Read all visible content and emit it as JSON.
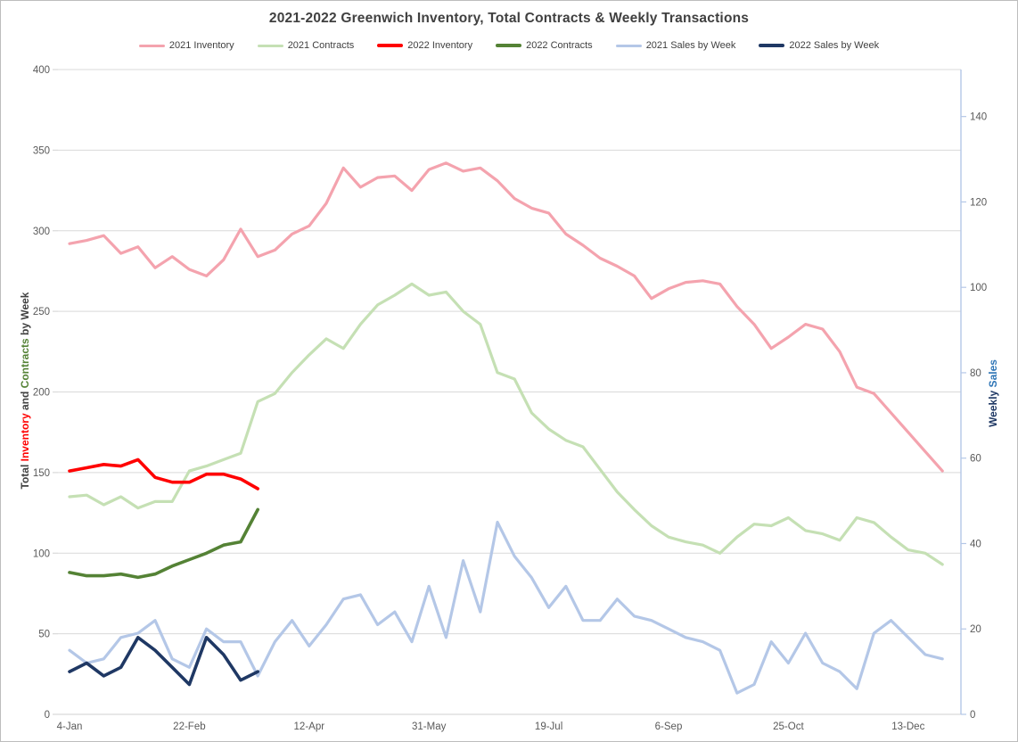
{
  "chart_data": {
    "type": "line",
    "title": "2021-2022 Greenwich Inventory, Total Contracts & Weekly Transactions",
    "legend_position": "top",
    "grid": true,
    "x_axis": {
      "tick_labels": [
        "4-Jan",
        "22-Feb",
        "12-Apr",
        "31-May",
        "19-Jul",
        "6-Sep",
        "25-Oct",
        "13-Dec"
      ],
      "tick_weeks": [
        1,
        8,
        15,
        22,
        29,
        36,
        43,
        50
      ],
      "total_weeks": 52
    },
    "y_left_axis": {
      "min": 0,
      "max": 400,
      "step": 50,
      "ticks": [
        400,
        350,
        300,
        250,
        200,
        150,
        100,
        50,
        0
      ],
      "title_parts": [
        {
          "text": "Total ",
          "color": "#404040"
        },
        {
          "text": "Inventory",
          "color": "#ff0000"
        },
        {
          "text": " and ",
          "color": "#404040"
        },
        {
          "text": "Contracts",
          "color": "#548235"
        },
        {
          "text": " by Week",
          "color": "#404040"
        }
      ]
    },
    "y_right_axis": {
      "min": 0,
      "max": 151,
      "step": 20,
      "ticks": [
        140,
        120,
        100,
        80,
        60,
        40,
        20,
        0
      ],
      "title_parts": [
        {
          "text": "Weekly ",
          "color": "#1f3864"
        },
        {
          "text": "Sales",
          "color": "#2e75b6"
        }
      ]
    },
    "series": [
      {
        "name": "2021 Inventory",
        "color": "#f4a3ae",
        "axis": "left",
        "stroke_width": 3.2,
        "values": [
          292,
          294,
          297,
          286,
          290,
          277,
          284,
          276,
          272,
          282,
          301,
          284,
          288,
          298,
          303,
          317,
          339,
          327,
          333,
          334,
          325,
          338,
          342,
          337,
          339,
          331,
          320,
          314,
          311,
          298,
          291,
          283,
          278,
          272,
          258,
          264,
          268,
          269,
          267,
          253,
          242,
          227,
          234,
          242,
          239,
          225,
          203,
          199,
          187,
          175,
          163,
          151
        ]
      },
      {
        "name": "2021 Contracts",
        "color": "#c5e0b4",
        "axis": "left",
        "stroke_width": 3.2,
        "values": [
          135,
          136,
          130,
          135,
          128,
          132,
          132,
          151,
          154,
          158,
          162,
          194,
          199,
          212,
          223,
          233,
          227,
          242,
          254,
          260,
          267,
          260,
          262,
          250,
          242,
          212,
          208,
          187,
          177,
          170,
          166,
          152,
          138,
          127,
          117,
          110,
          107,
          105,
          100,
          110,
          118,
          117,
          122,
          114,
          112,
          108,
          122,
          119,
          110,
          102,
          100,
          93
        ]
      },
      {
        "name": "2022 Inventory",
        "color": "#ff0000",
        "axis": "left",
        "stroke_width": 3.6,
        "values": [
          151,
          153,
          155,
          154,
          158,
          147,
          144,
          144,
          149,
          149,
          146,
          140
        ]
      },
      {
        "name": "2022 Contracts",
        "color": "#548235",
        "axis": "left",
        "stroke_width": 3.6,
        "values": [
          88,
          86,
          86,
          87,
          85,
          87,
          92,
          96,
          100,
          105,
          107,
          127
        ]
      },
      {
        "name": "2021 Sales by Week",
        "color": "#b4c7e7",
        "axis": "right",
        "stroke_width": 3.2,
        "values": [
          15,
          12,
          13,
          18,
          19,
          22,
          13,
          11,
          20,
          17,
          17,
          9,
          17,
          22,
          16,
          21,
          27,
          28,
          21,
          24,
          17,
          30,
          18,
          36,
          24,
          45,
          37,
          32,
          25,
          30,
          22,
          22,
          27,
          23,
          22,
          20,
          18,
          17,
          15,
          5,
          7,
          17,
          12,
          19,
          12,
          10,
          6,
          19,
          22,
          18,
          14,
          13
        ]
      },
      {
        "name": "2022 Sales by Week",
        "color": "#1f3864",
        "axis": "right",
        "stroke_width": 3.6,
        "values": [
          10,
          12,
          9,
          11,
          18,
          15,
          11,
          7,
          18,
          14,
          8,
          10
        ]
      }
    ],
    "style": {
      "gridline_color": "#d9d9d9",
      "x_axis_line_color": "#d9d9d9",
      "right_axis_line_color": "#b4c7e7",
      "tick_label_color": "#595959",
      "title_color": "#404040"
    }
  }
}
